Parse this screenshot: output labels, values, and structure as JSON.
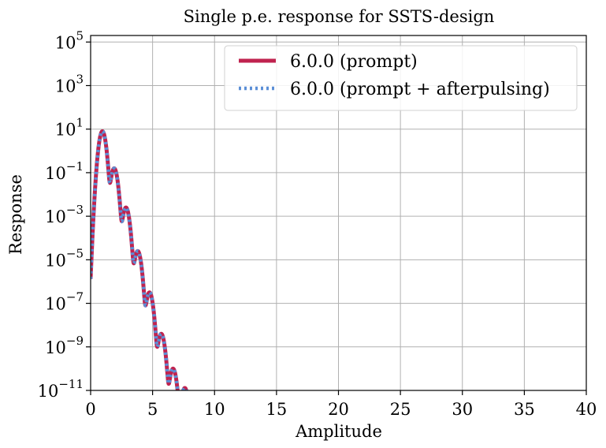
{
  "chart_data": {
    "type": "line",
    "title": "Single p.e. response for SSTS-design",
    "xlabel": "Amplitude",
    "ylabel": "Response",
    "xlim": [
      0,
      40
    ],
    "ylim_log10": [
      -11,
      5.3
    ],
    "yscale": "log",
    "grid": true,
    "legend_position": "top-right",
    "x_ticks": [
      0,
      5,
      10,
      15,
      20,
      25,
      30,
      35,
      40
    ],
    "x_tick_labels": [
      "0",
      "5",
      "10",
      "15",
      "20",
      "25",
      "30",
      "35",
      "40"
    ],
    "y_ticks_log10": [
      -11,
      -9,
      -7,
      -5,
      -3,
      -1,
      1,
      3,
      5
    ],
    "y_tick_labels": [
      {
        "base": "10",
        "exp": "−11"
      },
      {
        "base": "10",
        "exp": "−9"
      },
      {
        "base": "10",
        "exp": "−7"
      },
      {
        "base": "10",
        "exp": "−5"
      },
      {
        "base": "10",
        "exp": "−3"
      },
      {
        "base": "10",
        "exp": "−1"
      },
      {
        "base": "10",
        "exp": "1"
      },
      {
        "base": "10",
        "exp": "3"
      },
      {
        "base": "10",
        "exp": "5"
      }
    ],
    "peaks": [
      {
        "x": 0.95,
        "log10_y": 0.9
      },
      {
        "x": 1.9,
        "log10_y": -0.8
      },
      {
        "x": 2.85,
        "log10_y": -2.6
      },
      {
        "x": 3.8,
        "log10_y": -4.6
      },
      {
        "x": 4.75,
        "log10_y": -6.5
      },
      {
        "x": 5.7,
        "log10_y": -8.4
      },
      {
        "x": 6.65,
        "log10_y": -10.0
      },
      {
        "x": 7.6,
        "log10_y": -10.9
      }
    ],
    "peak_width": 0.17,
    "floor_log10": -12.5,
    "series": [
      {
        "name": "6.0.0 (prompt)",
        "color": "#c0234f",
        "style": "solid"
      },
      {
        "name": "6.0.0 (prompt + afterpulsing)",
        "color": "#5b8fd6",
        "style": "dotted"
      }
    ]
  }
}
